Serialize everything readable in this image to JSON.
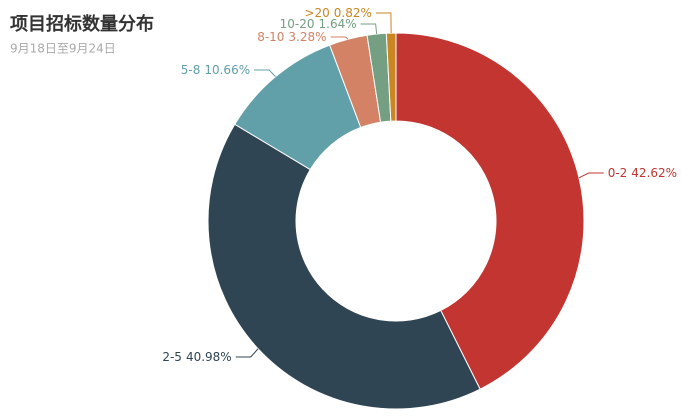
{
  "chart_data": {
    "type": "pie",
    "title": "项目招标数量分布",
    "subtitle": "9月18日至9月24日",
    "categories": [
      "0-2",
      "2-5",
      "5-8",
      "8-10",
      "10-20",
      ">20"
    ],
    "values": [
      42.62,
      40.98,
      10.66,
      3.28,
      1.64,
      0.82
    ],
    "value_labels": [
      "42.62%",
      "40.98%",
      "10.66%",
      "3.28%",
      "1.64%",
      "0.82%"
    ],
    "colors": [
      "#c23531",
      "#2f4554",
      "#61a0a8",
      "#d48265",
      "#749f83",
      "#ca8622"
    ]
  }
}
